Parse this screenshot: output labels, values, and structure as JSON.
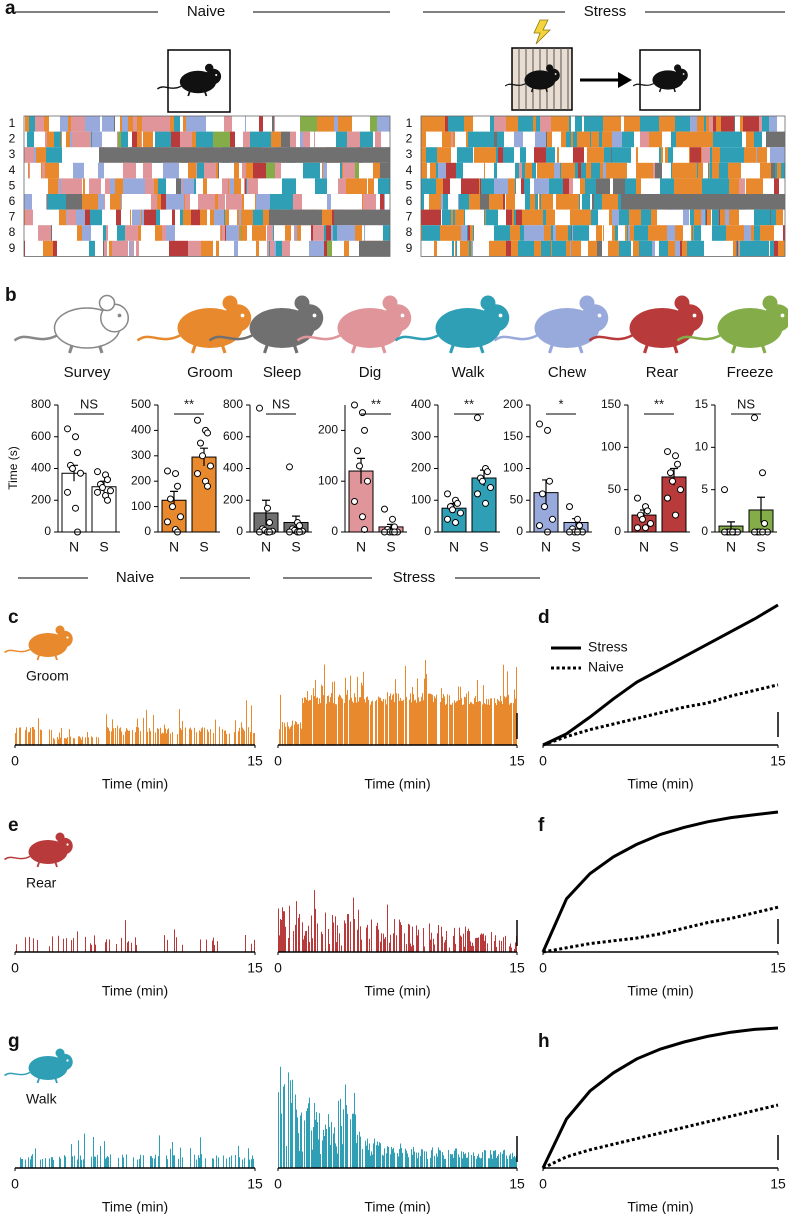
{
  "figure": {
    "panel_a": "a",
    "panel_b": "b",
    "panel_c": "c",
    "panel_d": "d",
    "panel_e": "e",
    "panel_f": "f",
    "panel_g": "g",
    "panel_h": "h",
    "naive": "Naive",
    "stress": "Stress"
  },
  "chart_data": [
    {
      "type": "ethogram",
      "rows": [
        "1",
        "2",
        "3",
        "4",
        "5",
        "6",
        "7",
        "8",
        "9"
      ]
    },
    {
      "type": "ethogram",
      "rows": [
        "1",
        "2",
        "3",
        "4",
        "5",
        "6",
        "7",
        "8",
        "9"
      ]
    },
    {
      "type": "bar",
      "title": "Survey",
      "ylabel": "Time (s)",
      "categories": [
        "N",
        "S"
      ],
      "values": [
        370,
        285
      ],
      "errors": [
        50,
        35
      ],
      "points": [
        [
          650,
          600,
          500,
          420,
          400,
          370,
          250,
          150,
          0
        ],
        [
          380,
          360,
          330,
          300,
          280,
          260,
          250,
          230,
          200
        ]
      ],
      "color": "#ffffff",
      "ylim": [
        0,
        800
      ],
      "yticks": [
        0,
        200,
        400,
        600,
        800
      ],
      "significance": "NS"
    },
    {
      "type": "bar",
      "title": "Groom",
      "categories": [
        "N",
        "S"
      ],
      "values": [
        125,
        295
      ],
      "errors": [
        35,
        35
      ],
      "points": [
        [
          240,
          230,
          180,
          130,
          100,
          60,
          40,
          10,
          0
        ],
        [
          440,
          400,
          390,
          350,
          300,
          260,
          230,
          200,
          180
        ]
      ],
      "color": "#e8892e",
      "ylim": [
        0,
        500
      ],
      "yticks": [
        0,
        100,
        200,
        300,
        400,
        500
      ],
      "significance": "**"
    },
    {
      "type": "bar",
      "title": "Sleep",
      "categories": [
        "N",
        "S"
      ],
      "values": [
        120,
        60
      ],
      "errors": [
        80,
        40
      ],
      "points": [
        [
          780,
          150,
          60,
          20,
          10,
          5,
          0,
          0,
          0
        ],
        [
          410,
          60,
          40,
          20,
          10,
          5,
          0,
          0,
          0
        ]
      ],
      "color": "#707070",
      "ylim": [
        0,
        800
      ],
      "yticks": [
        0,
        200,
        400,
        600,
        800
      ],
      "significance": "NS"
    },
    {
      "type": "bar",
      "title": "Dig",
      "categories": [
        "N",
        "S"
      ],
      "values": [
        120,
        10
      ],
      "errors": [
        25,
        5
      ],
      "points": [
        [
          250,
          235,
          200,
          160,
          130,
          100,
          60,
          30,
          5
        ],
        [
          45,
          25,
          10,
          5,
          0,
          0,
          0,
          0,
          0
        ]
      ],
      "color": "#e0959a",
      "ylim": [
        0,
        250
      ],
      "yticks": [
        0,
        100,
        200
      ],
      "significance": "**"
    },
    {
      "type": "bar",
      "title": "Walk",
      "categories": [
        "N",
        "S"
      ],
      "values": [
        75,
        170
      ],
      "errors": [
        15,
        25
      ],
      "points": [
        [
          120,
          100,
          90,
          80,
          70,
          60,
          40,
          30
        ],
        [
          360,
          200,
          190,
          170,
          160,
          140,
          120,
          90
        ]
      ],
      "color": "#2f9fb5",
      "ylim": [
        0,
        400
      ],
      "yticks": [
        0,
        100,
        200,
        300,
        400
      ],
      "significance": "**"
    },
    {
      "type": "bar",
      "title": "Chew",
      "categories": [
        "N",
        "S"
      ],
      "values": [
        62,
        15
      ],
      "errors": [
        20,
        6
      ],
      "points": [
        [
          170,
          160,
          80,
          60,
          40,
          20,
          10,
          0
        ],
        [
          40,
          20,
          10,
          5,
          0,
          0,
          0,
          0
        ]
      ],
      "color": "#98a9dc",
      "ylim": [
        0,
        200
      ],
      "yticks": [
        0,
        50,
        100,
        150,
        200
      ],
      "significance": "*"
    },
    {
      "type": "bar",
      "title": "Rear",
      "categories": [
        "N",
        "S"
      ],
      "values": [
        20,
        65
      ],
      "errors": [
        6,
        10
      ],
      "points": [
        [
          40,
          30,
          25,
          20,
          15,
          10,
          5,
          5
        ],
        [
          95,
          90,
          80,
          70,
          60,
          50,
          40,
          20
        ]
      ],
      "color": "#b83a3a",
      "ylim": [
        0,
        150
      ],
      "yticks": [
        0,
        50,
        100,
        150
      ],
      "significance": "**"
    },
    {
      "type": "bar",
      "title": "Freeze",
      "categories": [
        "N",
        "S"
      ],
      "values": [
        0.7,
        2.6
      ],
      "errors": [
        0.5,
        1.5
      ],
      "points": [
        [
          5,
          0,
          0,
          0,
          0,
          0,
          0,
          0
        ],
        [
          13.5,
          7,
          1,
          0,
          0,
          0,
          0,
          0
        ]
      ],
      "color": "#84ad4a",
      "ylim": [
        0,
        15
      ],
      "yticks": [
        0,
        5,
        10,
        15
      ],
      "significance": "NS"
    },
    {
      "type": "trace",
      "label": "Groom",
      "color": "#e8892e",
      "xlim": [
        0,
        15
      ],
      "xticks": [
        0,
        15
      ],
      "xlabel": "Time (min)"
    },
    {
      "type": "trace",
      "color": "#e8892e",
      "xlim": [
        0,
        15
      ],
      "xticks": [
        0,
        15
      ],
      "xlabel": "Time (min)"
    },
    {
      "type": "line",
      "x": [
        0,
        1.5,
        3,
        4.5,
        6,
        7.5,
        9,
        10.5,
        12,
        13.5,
        15
      ],
      "series": [
        {
          "name": "Stress",
          "color": "#000000",
          "style": "solid",
          "values": [
            0,
            0.08,
            0.2,
            0.33,
            0.45,
            0.54,
            0.63,
            0.72,
            0.81,
            0.9,
            1.0
          ]
        },
        {
          "name": "Naive",
          "color": "#000000",
          "style": "dotted",
          "values": [
            0,
            0.06,
            0.11,
            0.15,
            0.19,
            0.23,
            0.27,
            0.3,
            0.35,
            0.39,
            0.43
          ]
        }
      ],
      "xlim": [
        0,
        15
      ],
      "xticks": [
        0,
        15
      ],
      "xlabel": "Time (min)",
      "ylim": [
        0,
        1
      ],
      "legend": "upper left"
    },
    {
      "type": "trace",
      "label": "Rear",
      "color": "#b83a3a",
      "xlim": [
        0,
        15
      ],
      "xticks": [
        0,
        15
      ],
      "xlabel": "Time (min)"
    },
    {
      "type": "trace",
      "color": "#b83a3a",
      "xlim": [
        0,
        15
      ],
      "xticks": [
        0,
        15
      ],
      "xlabel": "Time (min)"
    },
    {
      "type": "line",
      "x": [
        0,
        1.5,
        3,
        4.5,
        6,
        7.5,
        9,
        10.5,
        12,
        13.5,
        15
      ],
      "series": [
        {
          "color": "#000000",
          "style": "solid",
          "values": [
            0,
            0.38,
            0.56,
            0.68,
            0.77,
            0.84,
            0.89,
            0.93,
            0.96,
            0.98,
            1.0
          ]
        },
        {
          "color": "#000000",
          "style": "dotted",
          "values": [
            0,
            0.03,
            0.06,
            0.08,
            0.1,
            0.13,
            0.17,
            0.21,
            0.24,
            0.28,
            0.32
          ]
        }
      ],
      "xlim": [
        0,
        15
      ],
      "xticks": [
        0,
        15
      ],
      "xlabel": "Time (min)",
      "ylim": [
        0,
        1
      ]
    },
    {
      "type": "trace",
      "label": "Walk",
      "color": "#2f9fb5",
      "xlim": [
        0,
        15
      ],
      "xticks": [
        0,
        15
      ],
      "xlabel": "Time (min)"
    },
    {
      "type": "trace",
      "color": "#2f9fb5",
      "xlim": [
        0,
        15
      ],
      "xticks": [
        0,
        15
      ],
      "xlabel": "Time (min)"
    },
    {
      "type": "line",
      "x": [
        0,
        1.5,
        3,
        4.5,
        6,
        7.5,
        9,
        10.5,
        12,
        13.5,
        15
      ],
      "series": [
        {
          "color": "#000000",
          "style": "solid",
          "values": [
            0,
            0.35,
            0.55,
            0.68,
            0.78,
            0.85,
            0.9,
            0.94,
            0.97,
            0.99,
            1.0
          ]
        },
        {
          "color": "#000000",
          "style": "dotted",
          "values": [
            0,
            0.08,
            0.13,
            0.17,
            0.21,
            0.25,
            0.29,
            0.33,
            0.37,
            0.41,
            0.45
          ]
        }
      ],
      "xlim": [
        0,
        15
      ],
      "xticks": [
        0,
        15
      ],
      "xlabel": "Time (min)",
      "ylim": [
        0,
        1
      ]
    }
  ]
}
